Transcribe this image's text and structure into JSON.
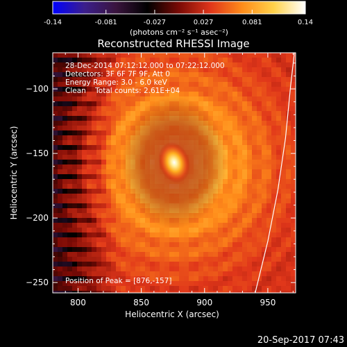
{
  "chart_data": {
    "type": "heatmap",
    "title": "Reconstructed RHESSI Image",
    "xlabel": "Heliocentric X (arcsec)",
    "ylabel": "Heliocentric Y (arcsec)",
    "xlim": [
      780,
      972
    ],
    "ylim": [
      -258,
      -72
    ],
    "xticks": [
      800,
      850,
      900,
      950
    ],
    "yticks": [
      -100,
      -150,
      -200,
      -250
    ],
    "colorbar": {
      "ticks": [
        "-0.14",
        "-0.081",
        "-0.027",
        "0.027",
        "0.081",
        "0.14"
      ],
      "range": [
        -0.14,
        0.14
      ],
      "unit_label": "(photons cm⁻² s⁻¹ asec⁻²)"
    },
    "annotations": [
      "28-Dec-2014 07:12:12.000 to 07:22:12.000",
      "Detectors: 3F 6F 7F 9F, Att 0",
      "Energy Range: 3.0 - 6.0 keV",
      "Clean    Total counts: 2.61E+04"
    ],
    "peak_label": "Position of Peak = [876,-157]",
    "peak": {
      "x": 876,
      "y": -157,
      "value": 0.14
    },
    "limb_curve": [
      [
        940,
        -258
      ],
      [
        950,
        -218
      ],
      [
        958,
        -178
      ],
      [
        964,
        -138
      ],
      [
        968,
        -98
      ],
      [
        971,
        -72
      ]
    ],
    "grid": false,
    "colormap": [
      "#0000ff",
      "#3b1e8c",
      "#3a143e",
      "#000000",
      "#7a0a05",
      "#e0361a",
      "#ff8c1a",
      "#ffd24a",
      "#ffffff"
    ]
  },
  "footer": {
    "timestamp": "20-Sep-2017 07:43"
  }
}
